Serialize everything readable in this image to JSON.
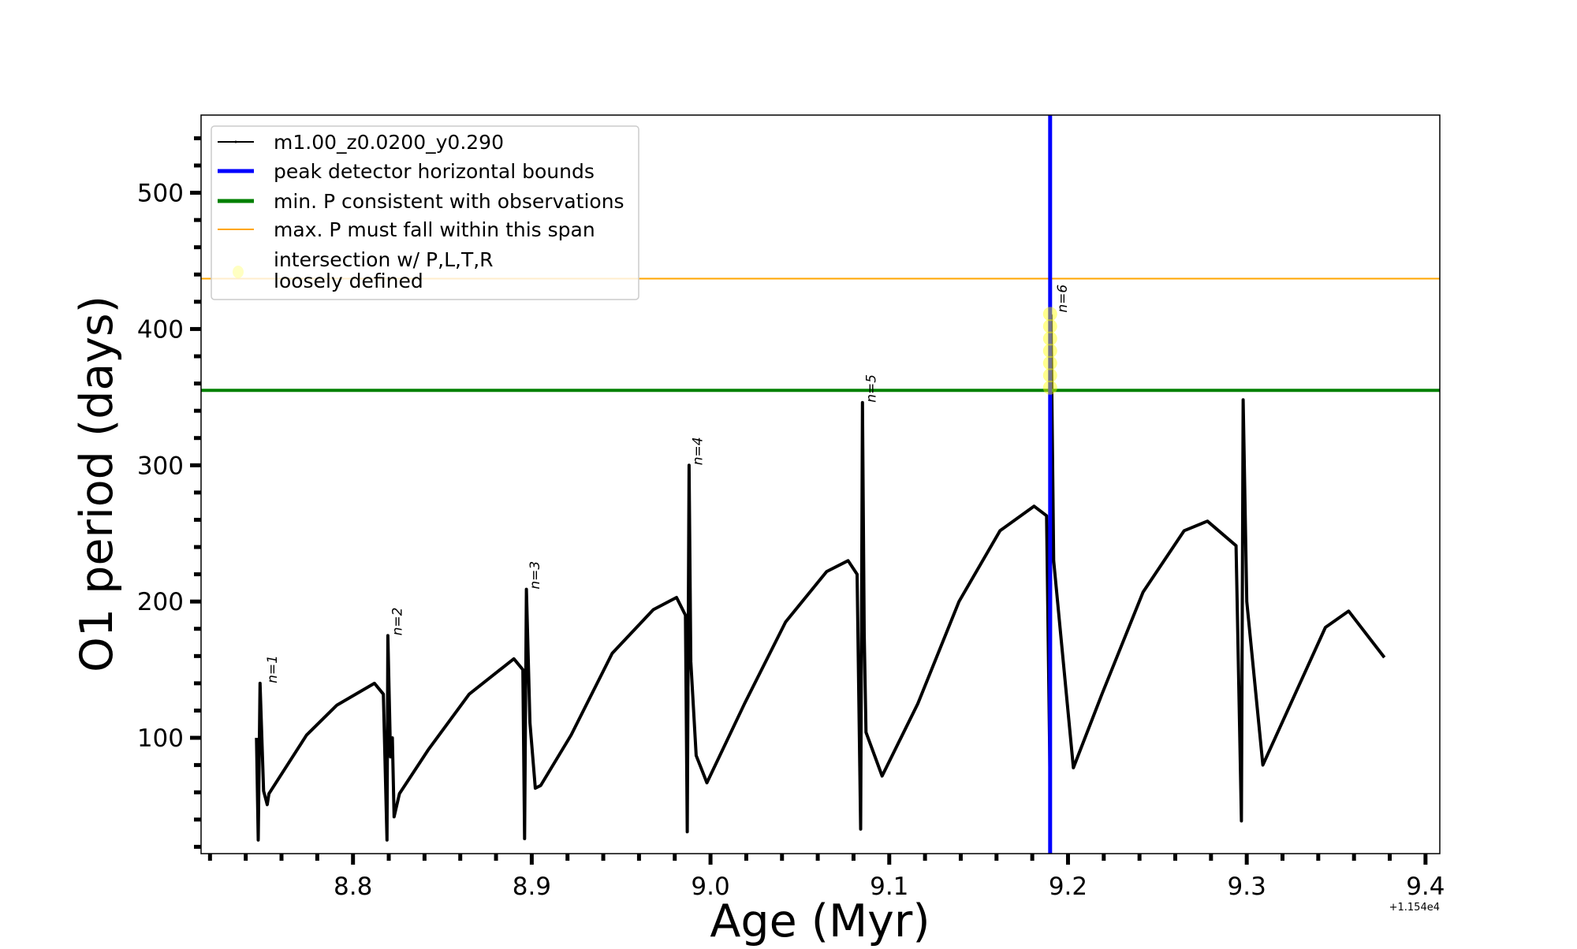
{
  "chart_data": {
    "type": "line",
    "xlabel": "Age (Myr)",
    "ylabel": "O1 period (days)",
    "x_offset_label": "+1.154e4",
    "xlim": [
      8.715,
      9.408
    ],
    "ylim": [
      15,
      557
    ],
    "xticks": [
      8.8,
      8.9,
      9.0,
      9.1,
      9.2,
      9.3,
      9.4
    ],
    "xtick_labels": [
      "8.8",
      "8.9",
      "9.0",
      "9.1",
      "9.2",
      "9.3",
      "9.4"
    ],
    "yticks": [
      100,
      200,
      300,
      400,
      500
    ],
    "ytick_labels": [
      "100",
      "200",
      "300",
      "400",
      "500"
    ],
    "grid": false,
    "legend_placement": "upper-left",
    "series": [
      {
        "name": "m1.00_z0.0200_y0.290",
        "color": "#000000",
        "points": [
          [
            8.746,
            100
          ],
          [
            8.747,
            25
          ],
          [
            8.748,
            140
          ],
          [
            8.75,
            61
          ],
          [
            8.752,
            51
          ],
          [
            8.753,
            59
          ],
          [
            8.774,
            102
          ],
          [
            8.791,
            124
          ],
          [
            8.812,
            140
          ],
          [
            8.817,
            132
          ],
          [
            8.819,
            25
          ],
          [
            8.8195,
            175
          ],
          [
            8.821,
            86
          ],
          [
            8.822,
            100
          ],
          [
            8.823,
            42
          ],
          [
            8.826,
            59
          ],
          [
            8.842,
            91
          ],
          [
            8.865,
            132
          ],
          [
            8.89,
            158
          ],
          [
            8.895,
            150
          ],
          [
            8.896,
            26
          ],
          [
            8.897,
            209
          ],
          [
            8.899,
            111
          ],
          [
            8.902,
            63
          ],
          [
            8.905,
            65
          ],
          [
            8.922,
            102
          ],
          [
            8.945,
            162
          ],
          [
            8.968,
            194
          ],
          [
            8.981,
            203
          ],
          [
            8.986,
            190
          ],
          [
            8.987,
            31
          ],
          [
            8.988,
            300
          ],
          [
            8.989,
            156
          ],
          [
            8.992,
            87
          ],
          [
            8.998,
            67
          ],
          [
            9.019,
            125
          ],
          [
            9.042,
            185
          ],
          [
            9.065,
            222
          ],
          [
            9.077,
            230
          ],
          [
            9.082,
            220
          ],
          [
            9.084,
            33
          ],
          [
            9.085,
            346
          ],
          [
            9.086,
            177
          ],
          [
            9.087,
            104
          ],
          [
            9.096,
            72
          ],
          [
            9.116,
            125
          ],
          [
            9.139,
            200
          ],
          [
            9.162,
            252
          ],
          [
            9.181,
            270
          ],
          [
            9.188,
            263
          ],
          [
            9.19,
            65
          ],
          [
            9.1905,
            410
          ],
          [
            9.192,
            230
          ],
          [
            9.203,
            78
          ],
          [
            9.219,
            132
          ],
          [
            9.242,
            207
          ],
          [
            9.265,
            252
          ],
          [
            9.278,
            259
          ],
          [
            9.294,
            241
          ],
          [
            9.297,
            39
          ],
          [
            9.298,
            348
          ],
          [
            9.3,
            200
          ],
          [
            9.309,
            80
          ],
          [
            9.327,
            132
          ],
          [
            9.344,
            181
          ],
          [
            9.357,
            193
          ],
          [
            9.377,
            159
          ]
        ]
      },
      {
        "name": "peak detector horizontal bounds",
        "color": "#0000ff",
        "type": "vline",
        "x": 9.19
      },
      {
        "name": "min. P consistent with observations",
        "color": "#008000",
        "type": "hline",
        "y": 355
      },
      {
        "name": "max. P must fall within this span",
        "color": "#ffa500",
        "type": "hline",
        "y": 437
      },
      {
        "name": "intersection w/ P,L,T,R\nloosely defined",
        "name_lines": [
          "intersection w/ P,L,T,R",
          "loosely defined"
        ],
        "color": "#ffff00",
        "type": "scatter",
        "points": [
          [
            9.19,
            357
          ],
          [
            9.19,
            366
          ],
          [
            9.19,
            375
          ],
          [
            9.19,
            384
          ],
          [
            9.19,
            393
          ],
          [
            9.19,
            402
          ],
          [
            9.19,
            411
          ]
        ]
      }
    ],
    "annotations": [
      {
        "text": "n=1",
        "x": 8.752,
        "y": 140
      },
      {
        "text": "n=2",
        "x": 8.822,
        "y": 175
      },
      {
        "text": "n=3",
        "x": 8.899,
        "y": 209
      },
      {
        "text": "n=4",
        "x": 8.99,
        "y": 300
      },
      {
        "text": "n=5",
        "x": 9.087,
        "y": 346
      },
      {
        "text": "n=6",
        "x": 9.194,
        "y": 412
      }
    ]
  }
}
